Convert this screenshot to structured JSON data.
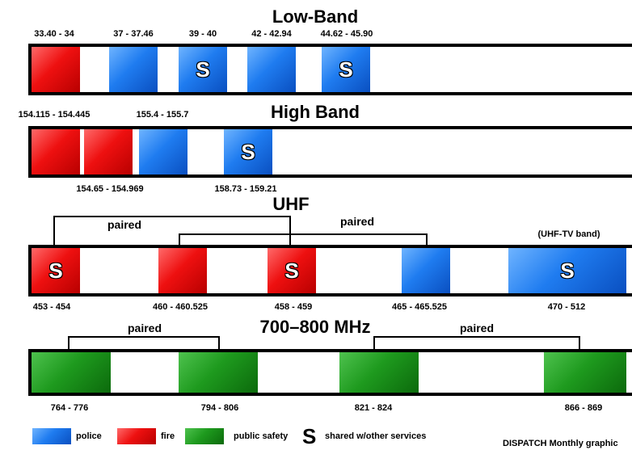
{
  "low_band": {
    "title": "Low-Band",
    "ranges": [
      "33.40 - 34",
      "37 - 37.46",
      "39 - 40",
      "42 - 42.94",
      "44.62 - 45.90"
    ],
    "blocks": [
      {
        "service": "fire",
        "shared": false
      },
      {
        "service": "police",
        "shared": false
      },
      {
        "service": "police",
        "shared": true
      },
      {
        "service": "police",
        "shared": false
      },
      {
        "service": "police",
        "shared": true
      }
    ]
  },
  "high_band": {
    "title": "High Band",
    "ranges_top": [
      "154.115 - 154.445",
      "155.4 - 155.7"
    ],
    "ranges_bottom": [
      "154.65 - 154.969",
      "158.73 - 159.21"
    ],
    "blocks": [
      {
        "service": "fire",
        "shared": false
      },
      {
        "service": "fire",
        "shared": false
      },
      {
        "service": "police",
        "shared": false
      },
      {
        "service": "police",
        "shared": true
      }
    ]
  },
  "uhf": {
    "title": "UHF",
    "paired_label": "paired",
    "tv_band_label": "(UHF-TV band)",
    "ranges": [
      "453 - 454",
      "460 - 460.525",
      "458 - 459",
      "465 - 465.525",
      "470 - 512"
    ],
    "blocks": [
      {
        "service": "fire",
        "shared": true
      },
      {
        "service": "fire",
        "shared": false
      },
      {
        "service": "fire",
        "shared": true
      },
      {
        "service": "police",
        "shared": false
      },
      {
        "service": "police",
        "shared": true
      }
    ]
  },
  "band_700_800": {
    "title": "700–800 MHz",
    "paired_label": "paired",
    "ranges": [
      "764 - 776",
      "794 - 806",
      "821 - 824",
      "866 - 869"
    ],
    "blocks": [
      {
        "service": "public safety",
        "shared": false
      },
      {
        "service": "public safety",
        "shared": false
      },
      {
        "service": "public safety",
        "shared": false
      },
      {
        "service": "public safety",
        "shared": false
      }
    ]
  },
  "shared_glyph": "S",
  "legend": {
    "police": "police",
    "fire": "fire",
    "public_safety": "public safety",
    "shared_glyph": "S",
    "shared": "shared w/other services"
  },
  "credit": "DISPATCH Monthly graphic",
  "colors": {
    "police": "#1f7cf0",
    "fire": "#ee1010",
    "public_safety": "#1e9a1e"
  }
}
